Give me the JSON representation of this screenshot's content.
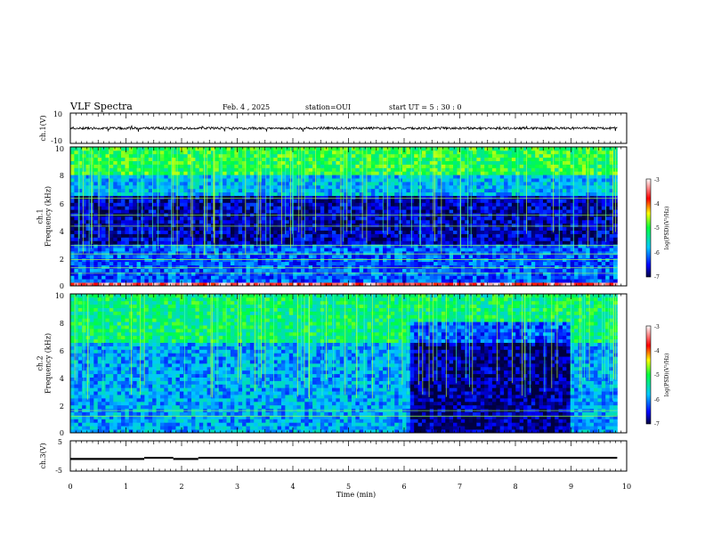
{
  "header": {
    "title": "VLF Spectra",
    "date": "Feb. 4 , 2025",
    "station": "station=OUI",
    "start_time": "start UT =  5 : 30 : 0"
  },
  "chart_data": [
    {
      "type": "line",
      "name": "ch1-waveform",
      "ylabel": "ch.1(V)",
      "ylim": [
        -10,
        10
      ],
      "ytick_labels": [
        "10",
        "-10"
      ],
      "x_range_min": [
        0,
        9.83
      ],
      "description_of_values": "noisy trace centred near 0 V with amplitude about ±1 V"
    },
    {
      "type": "heatmap",
      "name": "ch1-spectrogram",
      "ylabel": "ch.1\nFrequency (kHz)",
      "ylim": [
        0,
        10
      ],
      "ytick_labels": [
        "0",
        "2",
        "4",
        "6",
        "8",
        "10"
      ],
      "x_range_min": [
        0,
        9.83
      ],
      "colorbar": {
        "label": "log(PSD)(V²/Hz)",
        "range": [
          -7,
          -3
        ],
        "tick_labels": [
          "-3",
          "-4",
          "-5",
          "-6",
          "-7"
        ]
      },
      "regions": [
        {
          "freq_khz": [
            0,
            0.3
          ],
          "log_psd": -3.5
        },
        {
          "freq_khz": [
            0.3,
            3
          ],
          "log_psd": -6.2
        },
        {
          "freq_khz": [
            3,
            6.5
          ],
          "log_psd": -6.7
        },
        {
          "freq_khz": [
            6.5,
            8
          ],
          "log_psd": -5.8
        },
        {
          "freq_khz": [
            8,
            10
          ],
          "log_psd": -5.0
        }
      ],
      "tone_lines_khz": [
        0.9,
        1.3,
        1.9,
        2.3,
        2.9,
        4.3,
        5.1,
        6.3
      ]
    },
    {
      "type": "heatmap",
      "name": "ch2-spectrogram",
      "ylabel": "ch.2\nFrequency (kHz)",
      "ylim": [
        0,
        10
      ],
      "ytick_labels": [
        "0",
        "2",
        "4",
        "6",
        "8",
        "10"
      ],
      "x_range_min": [
        0,
        9.83
      ],
      "colorbar": {
        "label": "log(PSD)(V²/Hz)",
        "range": [
          -7,
          -3
        ],
        "tick_labels": [
          "-3",
          "-4",
          "-5",
          "-6",
          "-7"
        ]
      },
      "regions": [
        {
          "freq_khz": [
            0,
            6.5
          ],
          "log_psd": -5.9
        },
        {
          "freq_khz": [
            6.5,
            10
          ],
          "log_psd": -5.2
        }
      ],
      "quiet_interval_min": [
        6.05,
        8.95
      ],
      "quiet_log_psd": -6.8,
      "tone_lines_khz": [
        1.2,
        1.6
      ]
    },
    {
      "type": "line",
      "name": "ch3-trace",
      "ylabel": "ch.3(V)",
      "ylim": [
        -5,
        5
      ],
      "ytick_labels": [
        "5",
        "-5"
      ],
      "x_range_min": [
        0,
        9.83
      ],
      "segments": [
        {
          "x": [
            0,
            1.33
          ],
          "y": -1.0
        },
        {
          "x": [
            1.33,
            1.85
          ],
          "y": -0.6
        },
        {
          "x": [
            1.85,
            2.3
          ],
          "y": -1.0
        },
        {
          "x": [
            2.3,
            9.83
          ],
          "y": -0.6
        }
      ]
    }
  ],
  "xaxis": {
    "label": "Time (min)",
    "range": [
      0,
      10
    ],
    "tick_labels": [
      "0",
      "1",
      "2",
      "3",
      "4",
      "5",
      "6",
      "7",
      "8",
      "9",
      "10"
    ]
  }
}
